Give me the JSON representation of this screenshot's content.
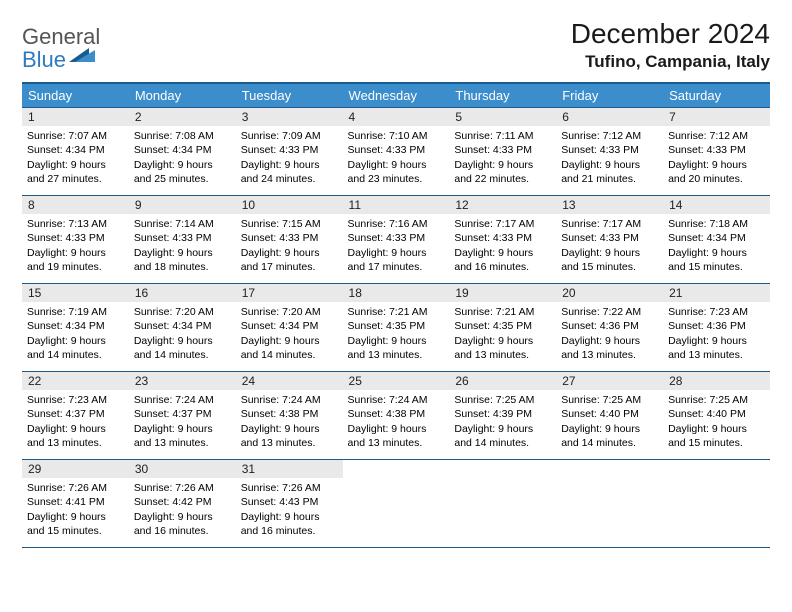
{
  "logo": {
    "line1": "General",
    "line2": "Blue"
  },
  "title": "December 2024",
  "location": "Tufino, Campania, Italy",
  "colors": {
    "header_bg": "#3b8dcb",
    "header_border": "#1a5a8c",
    "daynum_bg": "#e9e9e9",
    "logo_blue": "#2f7bbf",
    "logo_gray": "#555555"
  },
  "weekdays": [
    "Sunday",
    "Monday",
    "Tuesday",
    "Wednesday",
    "Thursday",
    "Friday",
    "Saturday"
  ],
  "weeks": [
    [
      {
        "n": "1",
        "sr": "Sunrise: 7:07 AM",
        "ss": "Sunset: 4:34 PM",
        "d1": "Daylight: 9 hours",
        "d2": "and 27 minutes."
      },
      {
        "n": "2",
        "sr": "Sunrise: 7:08 AM",
        "ss": "Sunset: 4:34 PM",
        "d1": "Daylight: 9 hours",
        "d2": "and 25 minutes."
      },
      {
        "n": "3",
        "sr": "Sunrise: 7:09 AM",
        "ss": "Sunset: 4:33 PM",
        "d1": "Daylight: 9 hours",
        "d2": "and 24 minutes."
      },
      {
        "n": "4",
        "sr": "Sunrise: 7:10 AM",
        "ss": "Sunset: 4:33 PM",
        "d1": "Daylight: 9 hours",
        "d2": "and 23 minutes."
      },
      {
        "n": "5",
        "sr": "Sunrise: 7:11 AM",
        "ss": "Sunset: 4:33 PM",
        "d1": "Daylight: 9 hours",
        "d2": "and 22 minutes."
      },
      {
        "n": "6",
        "sr": "Sunrise: 7:12 AM",
        "ss": "Sunset: 4:33 PM",
        "d1": "Daylight: 9 hours",
        "d2": "and 21 minutes."
      },
      {
        "n": "7",
        "sr": "Sunrise: 7:12 AM",
        "ss": "Sunset: 4:33 PM",
        "d1": "Daylight: 9 hours",
        "d2": "and 20 minutes."
      }
    ],
    [
      {
        "n": "8",
        "sr": "Sunrise: 7:13 AM",
        "ss": "Sunset: 4:33 PM",
        "d1": "Daylight: 9 hours",
        "d2": "and 19 minutes."
      },
      {
        "n": "9",
        "sr": "Sunrise: 7:14 AM",
        "ss": "Sunset: 4:33 PM",
        "d1": "Daylight: 9 hours",
        "d2": "and 18 minutes."
      },
      {
        "n": "10",
        "sr": "Sunrise: 7:15 AM",
        "ss": "Sunset: 4:33 PM",
        "d1": "Daylight: 9 hours",
        "d2": "and 17 minutes."
      },
      {
        "n": "11",
        "sr": "Sunrise: 7:16 AM",
        "ss": "Sunset: 4:33 PM",
        "d1": "Daylight: 9 hours",
        "d2": "and 17 minutes."
      },
      {
        "n": "12",
        "sr": "Sunrise: 7:17 AM",
        "ss": "Sunset: 4:33 PM",
        "d1": "Daylight: 9 hours",
        "d2": "and 16 minutes."
      },
      {
        "n": "13",
        "sr": "Sunrise: 7:17 AM",
        "ss": "Sunset: 4:33 PM",
        "d1": "Daylight: 9 hours",
        "d2": "and 15 minutes."
      },
      {
        "n": "14",
        "sr": "Sunrise: 7:18 AM",
        "ss": "Sunset: 4:34 PM",
        "d1": "Daylight: 9 hours",
        "d2": "and 15 minutes."
      }
    ],
    [
      {
        "n": "15",
        "sr": "Sunrise: 7:19 AM",
        "ss": "Sunset: 4:34 PM",
        "d1": "Daylight: 9 hours",
        "d2": "and 14 minutes."
      },
      {
        "n": "16",
        "sr": "Sunrise: 7:20 AM",
        "ss": "Sunset: 4:34 PM",
        "d1": "Daylight: 9 hours",
        "d2": "and 14 minutes."
      },
      {
        "n": "17",
        "sr": "Sunrise: 7:20 AM",
        "ss": "Sunset: 4:34 PM",
        "d1": "Daylight: 9 hours",
        "d2": "and 14 minutes."
      },
      {
        "n": "18",
        "sr": "Sunrise: 7:21 AM",
        "ss": "Sunset: 4:35 PM",
        "d1": "Daylight: 9 hours",
        "d2": "and 13 minutes."
      },
      {
        "n": "19",
        "sr": "Sunrise: 7:21 AM",
        "ss": "Sunset: 4:35 PM",
        "d1": "Daylight: 9 hours",
        "d2": "and 13 minutes."
      },
      {
        "n": "20",
        "sr": "Sunrise: 7:22 AM",
        "ss": "Sunset: 4:36 PM",
        "d1": "Daylight: 9 hours",
        "d2": "and 13 minutes."
      },
      {
        "n": "21",
        "sr": "Sunrise: 7:23 AM",
        "ss": "Sunset: 4:36 PM",
        "d1": "Daylight: 9 hours",
        "d2": "and 13 minutes."
      }
    ],
    [
      {
        "n": "22",
        "sr": "Sunrise: 7:23 AM",
        "ss": "Sunset: 4:37 PM",
        "d1": "Daylight: 9 hours",
        "d2": "and 13 minutes."
      },
      {
        "n": "23",
        "sr": "Sunrise: 7:24 AM",
        "ss": "Sunset: 4:37 PM",
        "d1": "Daylight: 9 hours",
        "d2": "and 13 minutes."
      },
      {
        "n": "24",
        "sr": "Sunrise: 7:24 AM",
        "ss": "Sunset: 4:38 PM",
        "d1": "Daylight: 9 hours",
        "d2": "and 13 minutes."
      },
      {
        "n": "25",
        "sr": "Sunrise: 7:24 AM",
        "ss": "Sunset: 4:38 PM",
        "d1": "Daylight: 9 hours",
        "d2": "and 13 minutes."
      },
      {
        "n": "26",
        "sr": "Sunrise: 7:25 AM",
        "ss": "Sunset: 4:39 PM",
        "d1": "Daylight: 9 hours",
        "d2": "and 14 minutes."
      },
      {
        "n": "27",
        "sr": "Sunrise: 7:25 AM",
        "ss": "Sunset: 4:40 PM",
        "d1": "Daylight: 9 hours",
        "d2": "and 14 minutes."
      },
      {
        "n": "28",
        "sr": "Sunrise: 7:25 AM",
        "ss": "Sunset: 4:40 PM",
        "d1": "Daylight: 9 hours",
        "d2": "and 15 minutes."
      }
    ],
    [
      {
        "n": "29",
        "sr": "Sunrise: 7:26 AM",
        "ss": "Sunset: 4:41 PM",
        "d1": "Daylight: 9 hours",
        "d2": "and 15 minutes."
      },
      {
        "n": "30",
        "sr": "Sunrise: 7:26 AM",
        "ss": "Sunset: 4:42 PM",
        "d1": "Daylight: 9 hours",
        "d2": "and 16 minutes."
      },
      {
        "n": "31",
        "sr": "Sunrise: 7:26 AM",
        "ss": "Sunset: 4:43 PM",
        "d1": "Daylight: 9 hours",
        "d2": "and 16 minutes."
      },
      null,
      null,
      null,
      null
    ]
  ]
}
